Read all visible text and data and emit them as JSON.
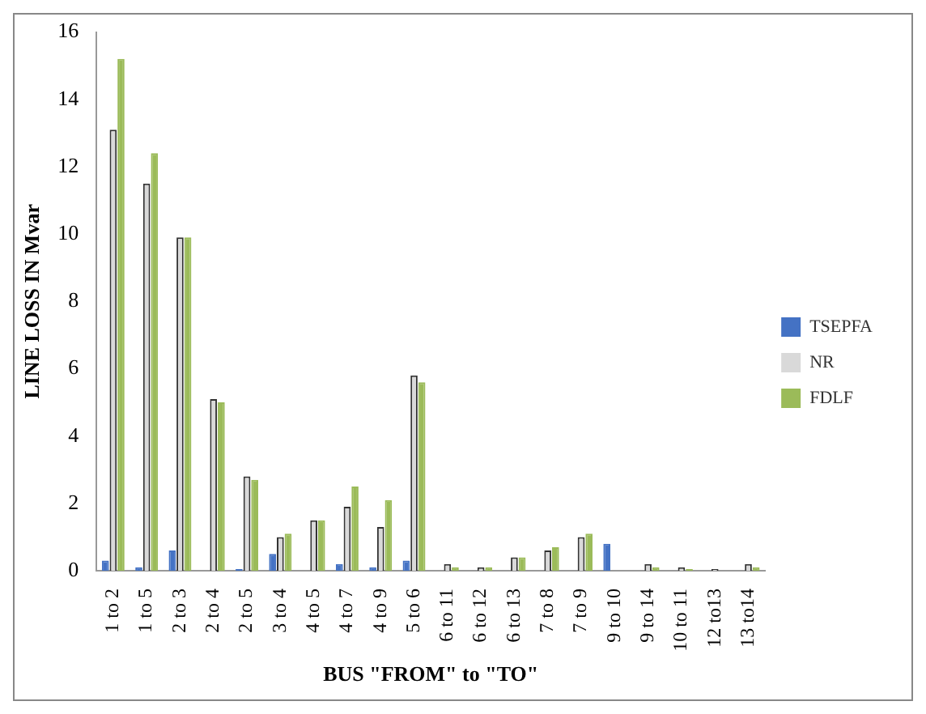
{
  "chart_data": {
    "type": "bar",
    "xlabel": "BUS \"FROM\" to \"TO\"",
    "ylabel": "LINE LOSS IN Mvar",
    "categories": [
      "1 to 2",
      "1 to 5",
      "2 to 3",
      "2 to 4",
      "2 to 5",
      "3 to 4",
      "4 to 5",
      "4 to 7",
      "4 to 9",
      "5 to 6",
      "6 to 11",
      "6 to 12",
      "6 to 13",
      "7 to 8",
      "7 to 9",
      "9 to 10",
      "9 to 14",
      "10 to 11",
      "12 to13",
      "13 to14"
    ],
    "series": [
      {
        "name": "TSEPFA",
        "color": "#4472c4",
        "values": [
          0.3,
          0.1,
          0.6,
          0,
          0.05,
          0.5,
          0,
          0.2,
          0.1,
          0.3,
          0,
          0,
          0,
          0,
          0,
          0.8,
          0,
          0,
          0,
          0
        ]
      },
      {
        "name": "NR",
        "color": "#d9d9d9",
        "values": [
          13.1,
          11.5,
          9.9,
          5.1,
          2.8,
          1.0,
          1.5,
          1.9,
          1.3,
          5.8,
          0.2,
          0.1,
          0.4,
          0.6,
          1.0,
          0,
          0.2,
          0.1,
          0.05,
          0.2
        ]
      },
      {
        "name": "FDLF",
        "color": "#9bbb59",
        "values": [
          15.2,
          12.4,
          9.9,
          5.0,
          2.7,
          1.1,
          1.5,
          2.5,
          2.1,
          5.6,
          0.1,
          0.1,
          0.4,
          0.7,
          1.1,
          0,
          0.1,
          0.05,
          0,
          0.1
        ]
      }
    ],
    "ylim": [
      0,
      16
    ],
    "yticks": [
      0,
      2,
      4,
      6,
      8,
      10,
      12,
      14,
      16
    ],
    "grid": false,
    "legend": "right"
  }
}
